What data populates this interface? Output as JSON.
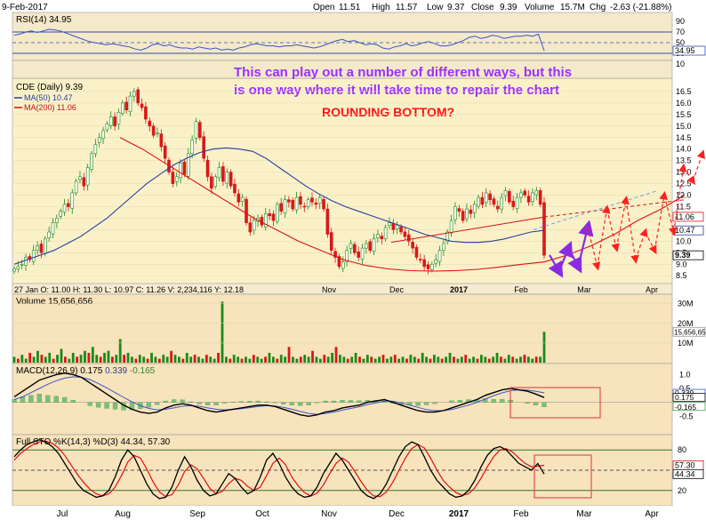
{
  "header": {
    "date": "9-Feb-2017",
    "open_label": "Open",
    "open": "11.51",
    "high_label": "High",
    "high": "11.57",
    "low_label": "Low",
    "low": "9.37",
    "close_label": "Close",
    "close": "9.39",
    "volume_label": "Volume",
    "volume": "15.7M",
    "chg_label": "Chg",
    "chg": "-2.63 (-21.88%)"
  },
  "annotations": {
    "line1": "This can play out a number of different ways, but this",
    "line2": "is one way where it will take time to repair the chart",
    "title": "ROUNDING BOTTOM?"
  },
  "colors": {
    "price_bg": "#faf3cf",
    "panel_bg": "#f7e6c0",
    "up": "#1a8a1a",
    "down": "#d81818",
    "ma50": "#2b3f9c",
    "ma200": "#e01010",
    "annot_text": "#9b30ff",
    "annot_title": "#ff1010",
    "purple_arrow": "#8a2be2",
    "red_dash": "#ff2020",
    "blue_dash": "#6f9ee0"
  },
  "chart_data": [
    {
      "panel": "rsi",
      "type": "line",
      "label": "RSI(14) 34.95",
      "ylim": [
        0,
        100
      ],
      "levels": [
        70,
        50,
        30
      ],
      "ticks": [
        "90",
        "70",
        "50",
        "30",
        "10"
      ],
      "last_label": "34.95",
      "values": [
        64,
        66,
        70,
        72,
        69,
        72,
        75,
        74,
        72,
        68,
        64,
        60,
        56,
        52,
        50,
        48,
        46,
        48,
        46,
        44,
        42,
        38,
        36,
        40,
        46,
        48,
        44,
        46,
        42,
        40,
        40,
        38,
        42,
        40,
        38,
        40,
        36,
        38,
        36,
        40,
        42,
        46,
        48,
        46,
        44,
        44,
        42,
        44,
        44,
        46,
        44,
        42,
        40,
        42,
        46,
        50,
        54,
        56,
        52,
        54,
        50,
        46,
        48,
        46,
        40,
        38,
        42,
        44,
        48,
        44,
        46,
        50,
        52,
        48,
        44,
        44,
        46,
        50,
        54,
        60,
        62,
        58,
        60,
        64,
        62,
        58,
        60,
        62,
        62,
        64,
        62,
        66,
        34.95
      ]
    },
    {
      "panel": "price",
      "type": "candlestick",
      "label": "CDE (Daily) 9.39",
      "legend": [
        "MA(50) 10.47",
        "MA(200) 11.06"
      ],
      "ylim": [
        8.2,
        17.0
      ],
      "yticks": [
        "16.5",
        "16.0",
        "15.5",
        "15.0",
        "14.5",
        "14.0",
        "13.5",
        "13.0",
        "12.5",
        "12.0",
        "11.5",
        "11.0",
        "10.5",
        "10.0",
        "9.5",
        "9.0",
        "8.5"
      ],
      "right_labels": [
        "11.06",
        "10.47",
        "9.39"
      ],
      "xticks": [
        "Nov",
        "Dec",
        "2017",
        "Feb",
        "Mar",
        "Apr"
      ],
      "xinfo": "27 Jan O: 11.00 H: 11.30 L: 10.97 C: 11.26 V: 2,234,116 Y: 12.18",
      "closes": [
        8.8,
        8.9,
        9.0,
        9.3,
        9.2,
        9.6,
        9.8,
        9.5,
        10.1,
        10.4,
        10.8,
        11.0,
        11.3,
        11.6,
        11.5,
        12.1,
        12.6,
        12.8,
        12.4,
        13.2,
        13.8,
        14.2,
        14.5,
        14.8,
        15.1,
        15.4,
        15.0,
        15.6,
        16.0,
        15.7,
        16.3,
        16.5,
        16.0,
        15.8,
        15.3,
        15.0,
        14.6,
        14.7,
        14.1,
        13.6,
        13.0,
        12.5,
        12.8,
        13.4,
        12.9,
        13.8,
        14.4,
        15.2,
        14.5,
        13.6,
        12.8,
        12.3,
        12.8,
        13.2,
        12.6,
        13.0,
        12.4,
        12.1,
        11.7,
        11.9,
        10.8,
        10.4,
        10.9,
        11.0,
        10.7,
        11.2,
        11.1,
        10.9,
        11.6,
        11.3,
        11.8,
        11.7,
        11.4,
        11.9,
        11.6,
        11.5,
        11.8,
        11.7,
        11.6,
        11.9,
        11.4,
        10.3,
        9.6,
        9.3,
        8.9,
        9.1,
        9.6,
        9.9,
        9.5,
        9.3,
        9.7,
        9.9,
        9.6,
        10.1,
        10.3,
        10.1,
        10.6,
        10.8,
        10.5,
        10.7,
        10.4,
        10.2,
        10.0,
        9.7,
        9.3,
        9.2,
        8.9,
        8.8,
        9.0,
        9.2,
        9.6,
        9.9,
        10.4,
        10.9,
        11.5,
        11.3,
        10.9,
        11.4,
        11.2,
        11.6,
        11.9,
        11.6,
        12.1,
        11.8,
        11.6,
        11.4,
        11.9,
        12.2,
        11.7,
        11.5,
        11.9,
        12.1,
        12.0,
        11.7,
        12.1,
        12.2,
        11.6,
        9.39
      ],
      "ma50": [
        9.0,
        9.2,
        9.4,
        9.6,
        9.9,
        10.2,
        10.6,
        11.0,
        11.5,
        12.0,
        12.5,
        12.9,
        13.3,
        13.6,
        13.85,
        14.0,
        14.05,
        14.0,
        13.9,
        13.6,
        13.2,
        12.8,
        12.4,
        12.05,
        11.75,
        11.5,
        11.3,
        11.1,
        10.9,
        10.7,
        10.5,
        10.3,
        10.15,
        10.0,
        9.95,
        9.95,
        10.0,
        10.1,
        10.25,
        10.4,
        10.47
      ],
      "ma200": [
        14.5,
        14.0,
        13.4,
        12.8,
        12.2,
        11.6,
        11.0,
        10.5,
        10.0,
        9.6,
        9.2,
        8.95,
        8.8,
        8.72,
        8.7,
        8.72,
        8.78,
        8.88,
        9.0,
        9.1
      ],
      "ma200_ext": [
        9.1,
        9.4,
        9.8,
        10.3,
        10.9,
        11.4,
        12.0
      ],
      "scenario_price": [
        9.4,
        8.7,
        9.7,
        8.9,
        10.6,
        8.9,
        11.4,
        9.7,
        11.8,
        9.2,
        10.4,
        9.6,
        12.0,
        10.4,
        13.2,
        12.6,
        13.8
      ]
    },
    {
      "panel": "volume",
      "type": "bar",
      "label": "Volume 15,656,656",
      "yticks": [
        "30M",
        "20M",
        "10M"
      ],
      "last_label": "15,656,656",
      "values": [
        3,
        2,
        4,
        2,
        5,
        3,
        6,
        4,
        3,
        5,
        2,
        4,
        7,
        3,
        2,
        5,
        3,
        4,
        6,
        5,
        8,
        4,
        3,
        5,
        6,
        3,
        4,
        12,
        4,
        5,
        3,
        2,
        4,
        3,
        2,
        5,
        3,
        2,
        4,
        3,
        6,
        4,
        3,
        2,
        5,
        3,
        4,
        3,
        2,
        4,
        3,
        2,
        5,
        31,
        3,
        2,
        4,
        3,
        2,
        3,
        2,
        4,
        3,
        2,
        3,
        5,
        3,
        2,
        4,
        3,
        8,
        3,
        2,
        3,
        4,
        3,
        6,
        3,
        2,
        4,
        3,
        5,
        8,
        4,
        3,
        2,
        3,
        5,
        3,
        2,
        4,
        3,
        2,
        3,
        4,
        2,
        3,
        4,
        2,
        3,
        2,
        4,
        3,
        2,
        5,
        3,
        2,
        4,
        3,
        2,
        3,
        5,
        3,
        2,
        3,
        4,
        2,
        3,
        2,
        4,
        3,
        2,
        3,
        5,
        3,
        2,
        4,
        3,
        2,
        3,
        4,
        3,
        2,
        3,
        3,
        15.7
      ],
      "up_down_pattern": "alternating"
    },
    {
      "panel": "macd",
      "type": "line",
      "label": "MACD(12,26,9)",
      "macd_value": "0.175",
      "signal_value": "0.339",
      "hist_value": "-0.165",
      "yticks": [
        "1.0",
        "0.5",
        "-0.5"
      ],
      "right_labels": [
        "0.339",
        "0.175",
        "-0.165"
      ],
      "ylim": [
        -1.1,
        1.3
      ],
      "macd": [
        0.2,
        0.4,
        0.6,
        0.8,
        0.9,
        1.0,
        1.05,
        1.0,
        0.9,
        0.7,
        0.5,
        0.3,
        0.1,
        -0.1,
        -0.25,
        -0.35,
        -0.4,
        -0.35,
        -0.2,
        -0.1,
        -0.05,
        -0.1,
        -0.2,
        -0.3,
        -0.35,
        -0.3,
        -0.25,
        -0.2,
        -0.15,
        -0.1,
        -0.1,
        -0.15,
        -0.25,
        -0.35,
        -0.45,
        -0.5,
        -0.45,
        -0.35,
        -0.3,
        -0.2,
        -0.15,
        -0.1,
        0.0,
        0.05,
        0.1,
        0.0,
        -0.1,
        -0.2,
        -0.3,
        -0.35,
        -0.35,
        -0.3,
        -0.2,
        -0.1,
        0.0,
        0.1,
        0.25,
        0.35,
        0.45,
        0.5,
        0.45,
        0.4,
        0.3,
        0.175
      ],
      "signal": [
        0.1,
        0.2,
        0.35,
        0.5,
        0.65,
        0.78,
        0.87,
        0.92,
        0.9,
        0.82,
        0.68,
        0.52,
        0.35,
        0.18,
        0.02,
        -0.12,
        -0.22,
        -0.27,
        -0.25,
        -0.2,
        -0.14,
        -0.12,
        -0.14,
        -0.2,
        -0.25,
        -0.27,
        -0.26,
        -0.23,
        -0.19,
        -0.15,
        -0.12,
        -0.13,
        -0.18,
        -0.25,
        -0.33,
        -0.4,
        -0.43,
        -0.4,
        -0.35,
        -0.28,
        -0.22,
        -0.16,
        -0.08,
        -0.02,
        0.05,
        0.04,
        -0.02,
        -0.1,
        -0.18,
        -0.26,
        -0.3,
        -0.3,
        -0.26,
        -0.18,
        -0.1,
        0.0,
        0.12,
        0.24,
        0.34,
        0.42,
        0.45,
        0.44,
        0.4,
        0.339
      ]
    },
    {
      "panel": "sto",
      "type": "line",
      "label": "Full STO %K(14,3) %D(3) 44.34, 57.30",
      "yticks": [
        "80",
        "50",
        "20"
      ],
      "right_labels": [
        "57.30",
        "44.34"
      ],
      "ylim": [
        0,
        100
      ],
      "levels": [
        80,
        50,
        20
      ],
      "k": [
        70,
        80,
        88,
        92,
        95,
        92,
        85,
        75,
        60,
        45,
        30,
        20,
        15,
        10,
        12,
        20,
        40,
        65,
        80,
        70,
        50,
        30,
        15,
        8,
        10,
        25,
        50,
        70,
        55,
        35,
        20,
        12,
        15,
        30,
        45,
        38,
        25,
        15,
        20,
        40,
        65,
        75,
        60,
        40,
        25,
        15,
        10,
        12,
        25,
        45,
        60,
        75,
        65,
        50,
        35,
        20,
        12,
        8,
        15,
        30,
        50,
        70,
        85,
        92,
        88,
        70,
        50,
        35,
        25,
        15,
        10,
        12,
        20,
        35,
        55,
        72,
        82,
        85,
        80,
        70,
        60,
        55,
        50,
        60,
        44.34
      ],
      "d": [
        65,
        75,
        82,
        88,
        92,
        93,
        90,
        83,
        72,
        58,
        44,
        32,
        22,
        15,
        12,
        15,
        25,
        42,
        62,
        72,
        68,
        52,
        33,
        18,
        11,
        14,
        28,
        48,
        58,
        52,
        38,
        23,
        15,
        19,
        30,
        38,
        35,
        26,
        20,
        25,
        42,
        60,
        68,
        58,
        40,
        27,
        17,
        12,
        16,
        28,
        45,
        60,
        68,
        62,
        48,
        33,
        20,
        12,
        11,
        18,
        32,
        50,
        68,
        82,
        88,
        83,
        68,
        50,
        35,
        25,
        17,
        13,
        15,
        24,
        38,
        55,
        70,
        80,
        82,
        77,
        68,
        60,
        55,
        56,
        57.3
      ]
    }
  ],
  "panel_xticks": [
    "Jul",
    "Aug",
    "Sep",
    "Oct",
    "Nov",
    "Dec",
    "2017",
    "Feb",
    "Mar",
    "Apr"
  ]
}
